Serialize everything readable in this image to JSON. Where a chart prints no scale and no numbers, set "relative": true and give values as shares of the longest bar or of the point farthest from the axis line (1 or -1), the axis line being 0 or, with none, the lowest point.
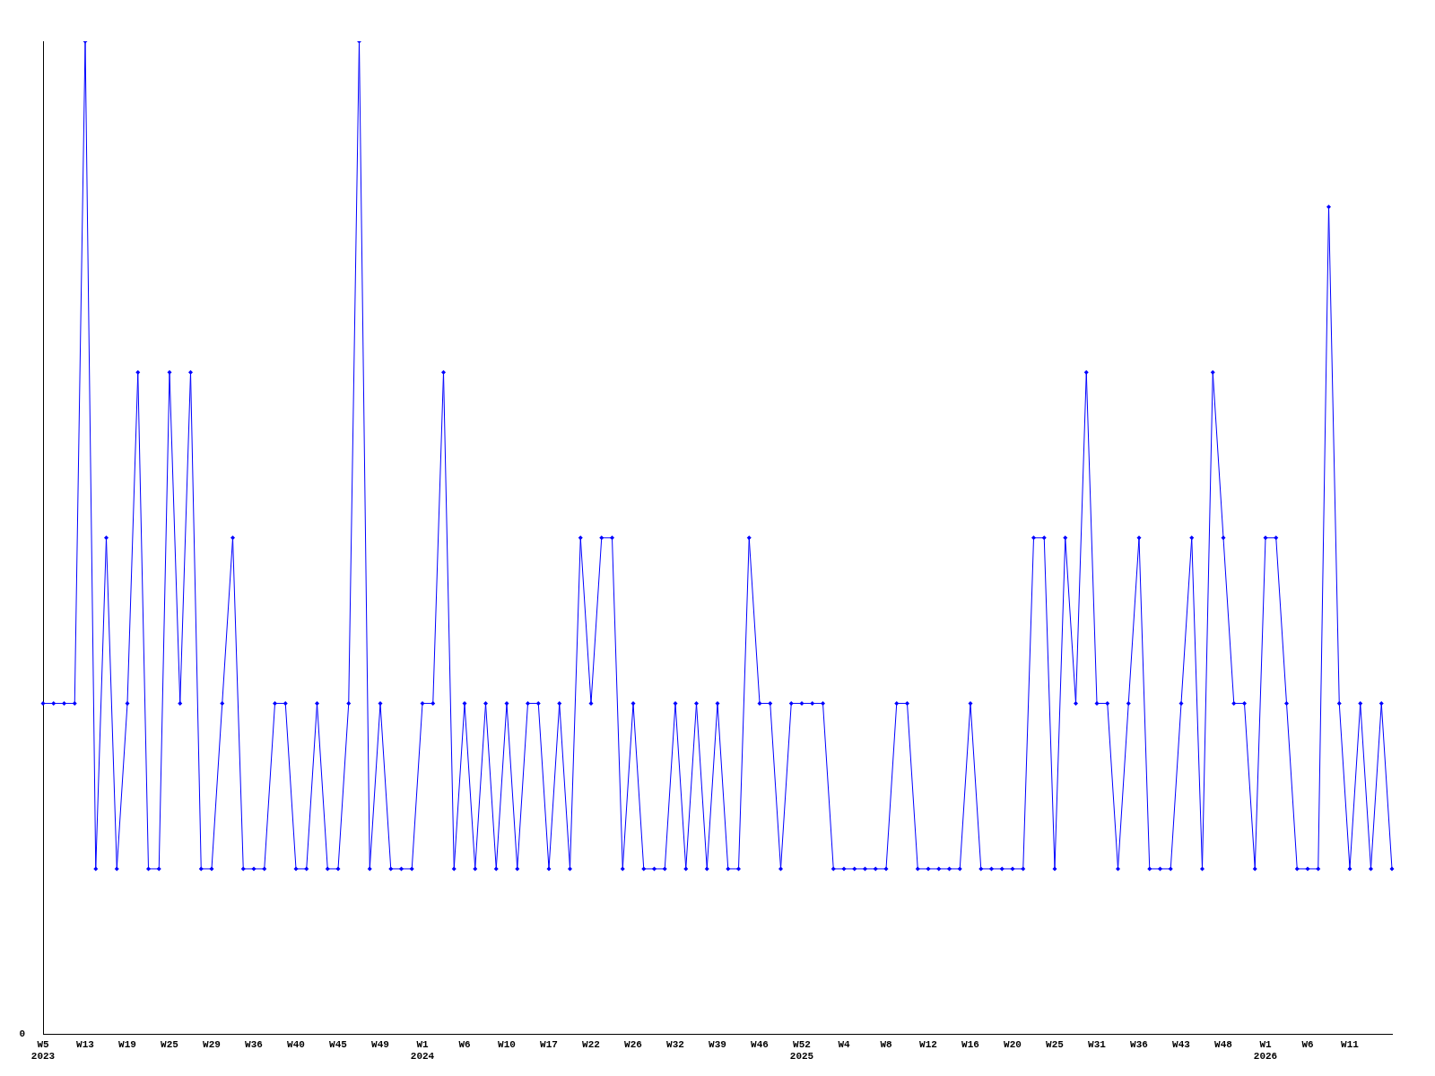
{
  "chart_data": {
    "type": "line",
    "relative": true,
    "grid": false,
    "legend": false,
    "marker": "diamond",
    "line_style": "solid",
    "categories": [
      "W5\n2023",
      null,
      null,
      null,
      "W13",
      null,
      null,
      null,
      "W19",
      null,
      null,
      null,
      "W25",
      null,
      null,
      null,
      "W29",
      null,
      null,
      null,
      "W36",
      null,
      null,
      null,
      "W40",
      null,
      null,
      null,
      "W45",
      null,
      null,
      null,
      "W49",
      null,
      null,
      null,
      "W1\n2024",
      null,
      null,
      null,
      "W6",
      null,
      null,
      null,
      "W10",
      null,
      null,
      null,
      "W17",
      null,
      null,
      null,
      "W22",
      null,
      null,
      null,
      "W26",
      null,
      null,
      null,
      "W32",
      null,
      null,
      null,
      "W39",
      null,
      null,
      null,
      "W46",
      null,
      null,
      null,
      "W52\n2025",
      null,
      null,
      null,
      "W4",
      null,
      null,
      null,
      "W8",
      null,
      null,
      null,
      "W12",
      null,
      null,
      null,
      "W16",
      null,
      null,
      null,
      "W20",
      null,
      null,
      null,
      "W25",
      null,
      null,
      null,
      "W31",
      null,
      null,
      null,
      "W36",
      null,
      null,
      null,
      "W43",
      null,
      null,
      null,
      "W48",
      null,
      null,
      null,
      "W1\n2026",
      null,
      null,
      null,
      "W6",
      null,
      null,
      null,
      "W11",
      null,
      null,
      null,
      null
    ],
    "series": [
      {
        "color": "#0000ff",
        "values": [
          0.3333,
          0.3333,
          0.3333,
          0.3333,
          1,
          0.1667,
          0.5,
          0.1667,
          0.3333,
          0.6667,
          0.1667,
          0.1667,
          0.6667,
          0.3333,
          0.6667,
          0.1667,
          0.1667,
          0.3333,
          0.5,
          0.1667,
          0.1667,
          0.1667,
          0.3333,
          0.3333,
          0.1667,
          0.1667,
          0.3333,
          0.1667,
          0.1667,
          0.3333,
          1,
          0.1667,
          0.3333,
          0.1667,
          0.1667,
          0.1667,
          0.3333,
          0.3333,
          0.6667,
          0.1667,
          0.3333,
          0.1667,
          0.3333,
          0.1667,
          0.3333,
          0.1667,
          0.3333,
          0.3333,
          0.1667,
          0.3333,
          0.1667,
          0.5,
          0.3333,
          0.5,
          0.5,
          0.1667,
          0.3333,
          0.1667,
          0.1667,
          0.1667,
          0.3333,
          0.1667,
          0.3333,
          0.1667,
          0.3333,
          0.1667,
          0.1667,
          0.5,
          0.3333,
          0.3333,
          0.1667,
          0.3333,
          0.3333,
          0.3333,
          0.3333,
          0.1667,
          0.1667,
          0.1667,
          0.1667,
          0.1667,
          0.1667,
          0.3333,
          0.3333,
          0.1667,
          0.1667,
          0.1667,
          0.1667,
          0.1667,
          0.3333,
          0.1667,
          0.1667,
          0.1667,
          0.1667,
          0.1667,
          0.5,
          0.5,
          0.1667,
          0.5,
          0.3333,
          0.6667,
          0.3333,
          0.3333,
          0.1667,
          0.3333,
          0.5,
          0.1667,
          0.1667,
          0.1667,
          0.3333,
          0.5,
          0.1667,
          0.6667,
          0.5,
          0.3333,
          0.3333,
          0.1667,
          0.5,
          0.5,
          0.3333,
          0.1667,
          0.1667,
          0.1667,
          0.8333,
          0.3333,
          0.1667,
          0.3333,
          0.1667,
          0.3333,
          0.1667
        ]
      }
    ],
    "annotations": [
      "0"
    ]
  }
}
